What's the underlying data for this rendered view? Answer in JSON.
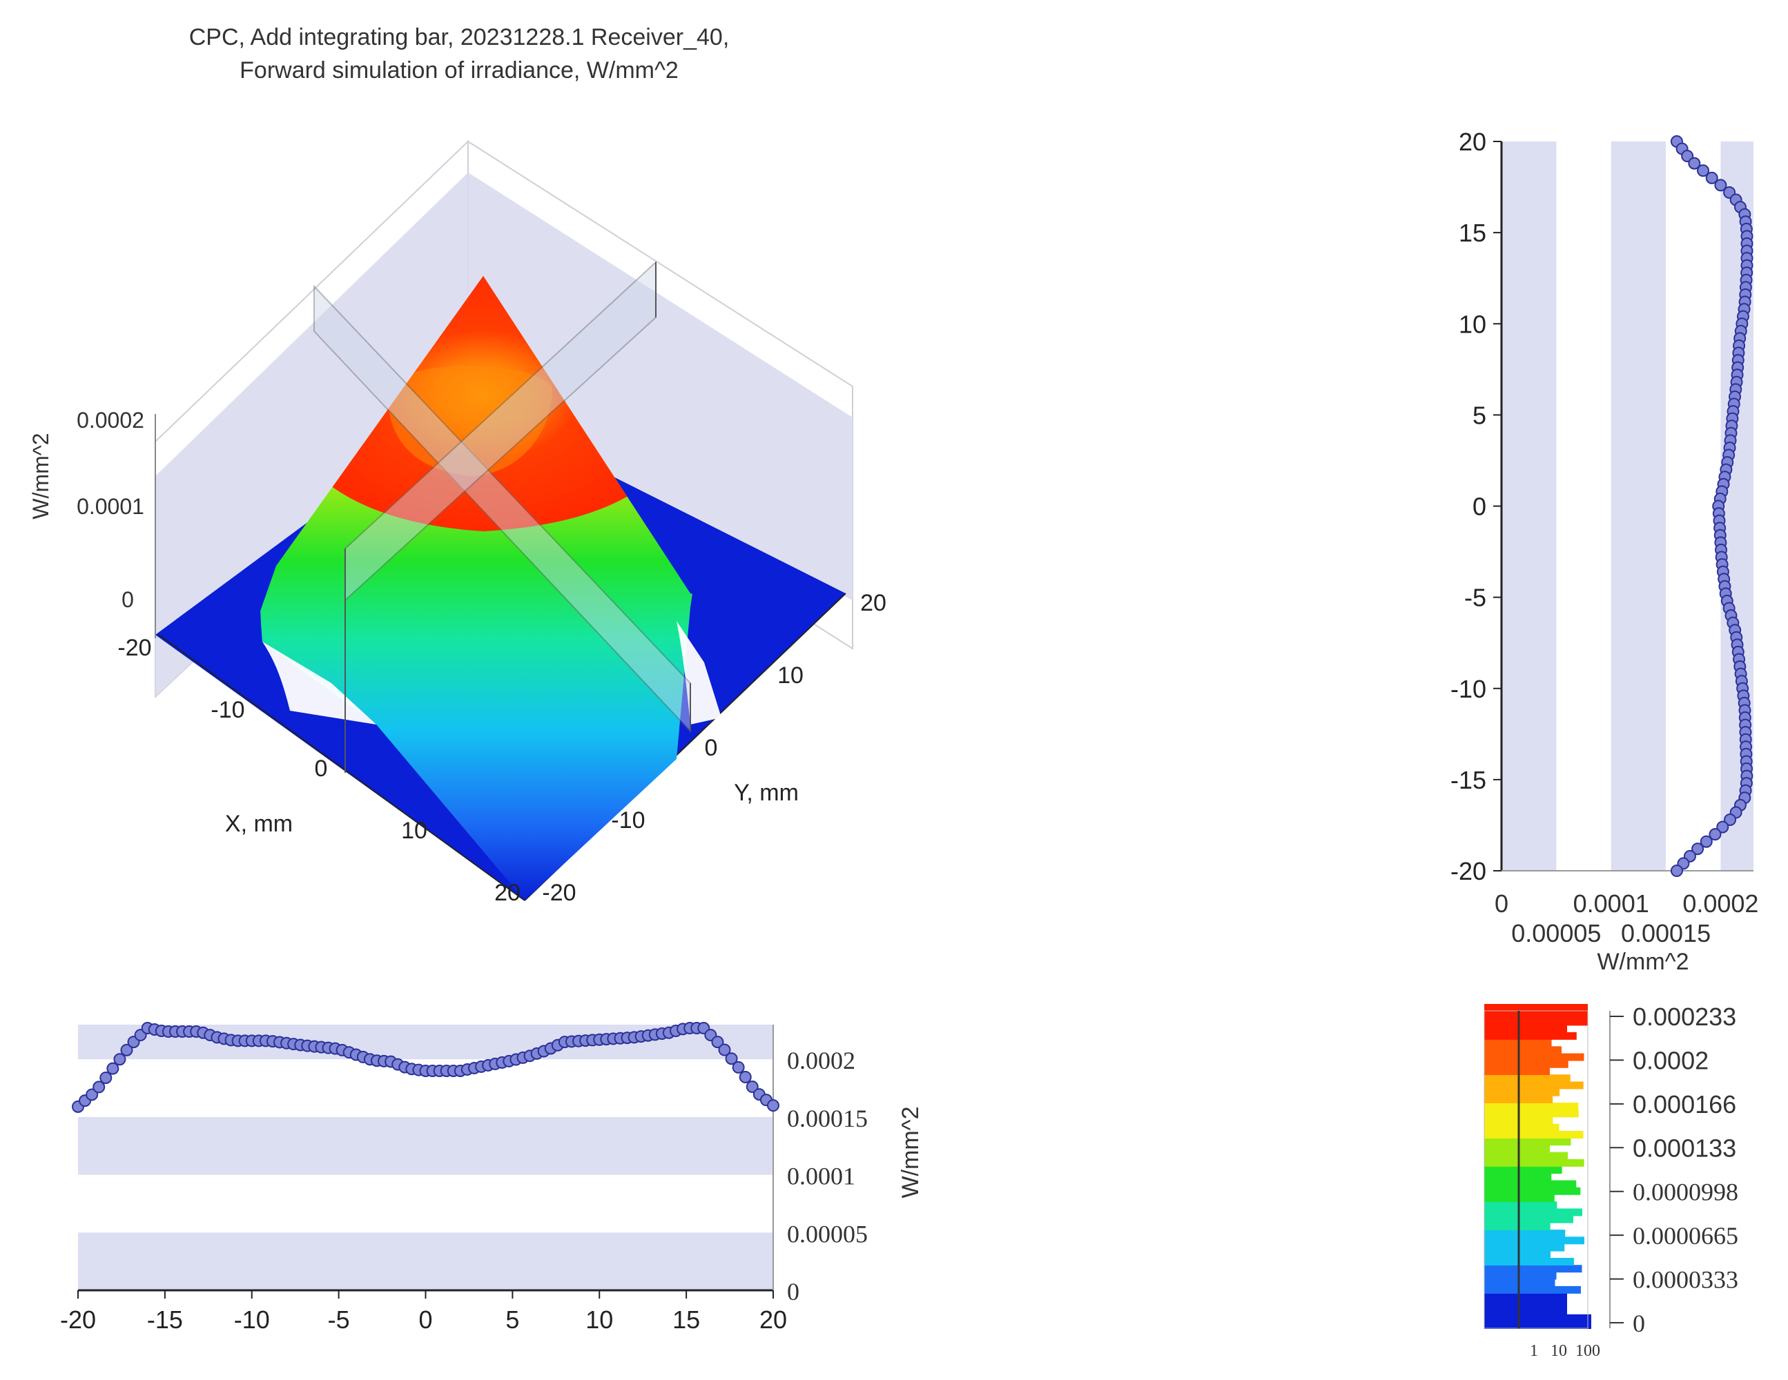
{
  "title": {
    "line1": "CPC,  Add integrating bar, 20231228.1 Receiver_40,",
    "line2": "Forward simulation of irradiance, W/mm^2"
  },
  "colors": {
    "band": "#dcdff2",
    "marker_fill": "#7f86d6",
    "marker_stroke": "#2b3196",
    "axis": "#333333",
    "text": "#333333",
    "surface_top": "#ff2a00",
    "surface_center": "#ff7a00",
    "floor": "#0a1fd6",
    "wall": "#d9dcef"
  },
  "chart_data": [
    {
      "id": "surface3d",
      "type": "surface",
      "zlabel": "W/mm^2",
      "xlabel": "X, mm",
      "ylabel": "Y, mm",
      "zticks": [
        "0",
        "0.0001",
        "0.0002"
      ],
      "xticks": [
        "-20",
        "-10",
        "0",
        "10",
        "20"
      ],
      "yticks": [
        "-20",
        "-10",
        "0",
        "10",
        "20"
      ],
      "xlim": [
        -20,
        20
      ],
      "ylim": [
        -20,
        20
      ],
      "zlim": [
        0,
        0.0002
      ],
      "plateau_value": 0.00021,
      "center_value": 0.00019
    },
    {
      "id": "profile_x",
      "type": "scatter",
      "orientation": "horizontal",
      "ylabel": "W/mm^2",
      "xticks": [
        "-20",
        "-15",
        "-10",
        "-5",
        "0",
        "5",
        "10",
        "15",
        "20"
      ],
      "yticks": [
        "0",
        "0.00005",
        "0.0001",
        "0.00015",
        "0.0002"
      ],
      "xlim": [
        -20,
        20
      ],
      "ylim": [
        0,
        0.00023
      ],
      "profile_knots": [
        [
          -20,
          0.000159
        ],
        [
          -19,
          0.000172
        ],
        [
          -18,
          0.000192
        ],
        [
          -17,
          0.000212
        ],
        [
          -16,
          0.000227
        ],
        [
          -15,
          0.000224
        ],
        [
          -13,
          0.000224
        ],
        [
          -12,
          0.000219
        ],
        [
          -11,
          0.000216
        ],
        [
          -9,
          0.000216
        ],
        [
          -7,
          0.000212
        ],
        [
          -5,
          0.000209
        ],
        [
          -4,
          0.000204
        ],
        [
          -3,
          0.000199
        ],
        [
          -2,
          0.000198
        ],
        [
          -1,
          0.000192
        ],
        [
          0,
          0.00019
        ],
        [
          2,
          0.00019
        ],
        [
          3,
          0.000193
        ],
        [
          5,
          0.000199
        ],
        [
          6,
          0.000203
        ],
        [
          7,
          0.000208
        ],
        [
          8,
          0.000215
        ],
        [
          10,
          0.000217
        ],
        [
          12,
          0.000219
        ],
        [
          14,
          0.000223
        ],
        [
          15,
          0.000227
        ],
        [
          16,
          0.000227
        ],
        [
          17,
          0.000212
        ],
        [
          18,
          0.000193
        ],
        [
          19,
          0.000172
        ],
        [
          20,
          0.00016
        ]
      ],
      "sample_step": 0.4
    },
    {
      "id": "profile_y",
      "type": "scatter",
      "orientation": "vertical",
      "xlabel": "W/mm^2",
      "yticks": [
        "-20",
        "-15",
        "-10",
        "-5",
        "0",
        "5",
        "10",
        "15",
        "20"
      ],
      "xticks_top": [
        "0",
        "0.0001",
        "0.0002"
      ],
      "xticks_bottom": [
        "0.00005",
        "0.00015"
      ],
      "ylim": [
        -20,
        20
      ],
      "xlim": [
        0,
        0.00023
      ],
      "profile_knots": [
        [
          20,
          0.00016
        ],
        [
          19,
          0.000172
        ],
        [
          18,
          0.000192
        ],
        [
          17,
          0.000212
        ],
        [
          16,
          0.000222
        ],
        [
          15,
          0.000224
        ],
        [
          13,
          0.000224
        ],
        [
          11,
          0.000222
        ],
        [
          9,
          0.000217
        ],
        [
          7,
          0.000215
        ],
        [
          5,
          0.000211
        ],
        [
          3,
          0.000208
        ],
        [
          1,
          0.000202
        ],
        [
          0,
          0.000198
        ],
        [
          -1,
          0.000199
        ],
        [
          -3,
          0.000201
        ],
        [
          -5,
          0.000205
        ],
        [
          -7,
          0.000214
        ],
        [
          -9,
          0.000218
        ],
        [
          -11,
          0.000222
        ],
        [
          -13,
          0.000223
        ],
        [
          -15,
          0.000224
        ],
        [
          -16,
          0.000222
        ],
        [
          -17,
          0.000212
        ],
        [
          -18,
          0.000195
        ],
        [
          -19,
          0.000175
        ],
        [
          -20,
          0.00016
        ]
      ],
      "sample_step": 0.4
    },
    {
      "id": "colorbar",
      "type": "colorbar",
      "labels": [
        "0.000233",
        "0.0002",
        "0.000166",
        "0.000133",
        "0.0000998",
        "0.0000665",
        "0.0000333",
        "0"
      ],
      "histogram_ticks": [
        "1",
        "10",
        "100"
      ]
    }
  ]
}
